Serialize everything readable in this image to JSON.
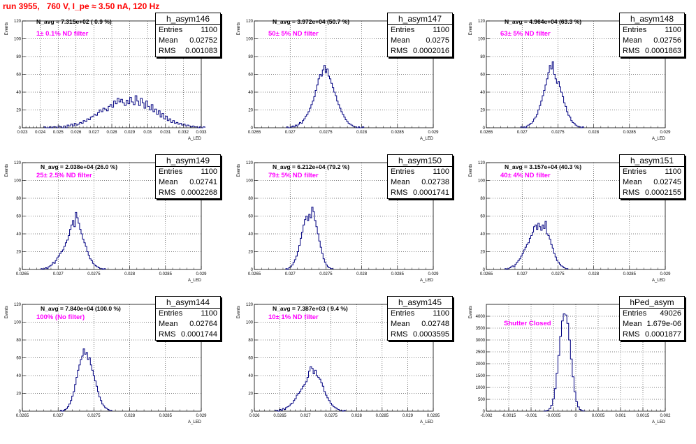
{
  "header": {
    "run_title": "run 3955,   760 V, I_pe ≈ 3.50 nA, 120 Hz"
  },
  "axis_labels": {
    "y": "Events",
    "x": "A_LED"
  },
  "stats_labels": {
    "entries": "Entries",
    "mean": "Mean",
    "rms": "RMS"
  },
  "colors": {
    "title": "#ff0000",
    "filter_text": "#ff00ff",
    "histogram": "#000080",
    "grid": "#000000"
  },
  "chart_data": [
    {
      "type": "bar",
      "name": "h_asym146",
      "n_avg": "N_avg = 7.315e+02 ( 0.9 %)",
      "filter": "1± 0.1% ND filter",
      "stats": {
        "entries": "1100",
        "mean": "0.02752",
        "rms": "0.001083"
      },
      "xlim": [
        0.023,
        0.033
      ],
      "ylim": [
        0,
        120
      ],
      "xticks": [
        "0.023",
        "0.024",
        "0.025",
        "0.026",
        "0.027",
        "0.028",
        "0.029",
        "0.03",
        "0.031",
        "0.032",
        "0.033"
      ],
      "yticks": [
        "0",
        "20",
        "40",
        "60",
        "80",
        "100",
        "120"
      ],
      "bin_start": 0.0242,
      "bin_width": 0.0001,
      "values": [
        1,
        0,
        0,
        1,
        0,
        1,
        1,
        0,
        2,
        1,
        0,
        2,
        0,
        3,
        2,
        4,
        2,
        5,
        3,
        4,
        6,
        5,
        8,
        7,
        10,
        9,
        12,
        13,
        15,
        14,
        17,
        20,
        18,
        22,
        21,
        19,
        24,
        26,
        23,
        30,
        27,
        33,
        29,
        32,
        28,
        25,
        31,
        27,
        34,
        29,
        26,
        36,
        30,
        25,
        33,
        28,
        22,
        30,
        24,
        20,
        26,
        18,
        21,
        15,
        19,
        12,
        16,
        10,
        13,
        8,
        10,
        6,
        8,
        5,
        6,
        4,
        5,
        3,
        4,
        2,
        3,
        2,
        1,
        2,
        1,
        1,
        0,
        1,
        0,
        1
      ]
    },
    {
      "type": "bar",
      "name": "h_asym147",
      "n_avg": "N_avg = 3.972e+04 (50.7 %)",
      "filter": "50± 5% ND filter",
      "stats": {
        "entries": "1100",
        "mean": "0.0275",
        "rms": "0.0002016"
      },
      "xlim": [
        0.0265,
        0.029
      ],
      "ylim": [
        0,
        120
      ],
      "xticks": [
        "0.0265",
        "0.027",
        "0.0275",
        "0.028",
        "0.0285",
        "0.029"
      ],
      "yticks": [
        "0",
        "20",
        "40",
        "60",
        "80",
        "100",
        "120"
      ],
      "bin_start": 0.02695,
      "bin_width": 2e-05,
      "values": [
        1,
        0,
        0,
        1,
        2,
        1,
        3,
        2,
        4,
        6,
        5,
        8,
        10,
        13,
        15,
        18,
        22,
        26,
        30,
        35,
        42,
        48,
        55,
        60,
        58,
        65,
        70,
        62,
        66,
        58,
        55,
        50,
        45,
        40,
        36,
        30,
        26,
        22,
        18,
        15,
        12,
        9,
        7,
        5,
        4,
        3,
        2,
        1,
        1,
        0,
        1,
        0,
        0,
        1
      ]
    },
    {
      "type": "bar",
      "name": "h_asym148",
      "n_avg": "N_avg = 4.964e+04 (63.3 %)",
      "filter": "63± 5% ND filter",
      "stats": {
        "entries": "1100",
        "mean": "0.02756",
        "rms": "0.0001863"
      },
      "xlim": [
        0.0265,
        0.029
      ],
      "ylim": [
        0,
        120
      ],
      "xticks": [
        "0.0265",
        "0.027",
        "0.0275",
        "0.028",
        "0.0285",
        "0.029"
      ],
      "yticks": [
        "0",
        "20",
        "40",
        "60",
        "80",
        "100",
        "120"
      ],
      "bin_start": 0.02698,
      "bin_width": 2e-05,
      "values": [
        1,
        0,
        1,
        0,
        2,
        3,
        4,
        5,
        7,
        10,
        12,
        15,
        20,
        25,
        30,
        36,
        42,
        48,
        55,
        62,
        70,
        66,
        74,
        60,
        55,
        50,
        52,
        46,
        40,
        35,
        28,
        24,
        18,
        14,
        12,
        8,
        6,
        5,
        3,
        2,
        1,
        1,
        0,
        1
      ]
    },
    {
      "type": "bar",
      "name": "h_asym149",
      "n_avg": "N_avg = 2.038e+04 (26.0 %)",
      "filter": "25± 2.5% ND filter",
      "stats": {
        "entries": "1100",
        "mean": "0.02741",
        "rms": "0.0002268"
      },
      "xlim": [
        0.0265,
        0.029
      ],
      "ylim": [
        0,
        120
      ],
      "xticks": [
        "0.0265",
        "0.027",
        "0.0275",
        "0.028",
        "0.0285",
        "0.029"
      ],
      "yticks": [
        "0",
        "20",
        "40",
        "60",
        "80",
        "100",
        "120"
      ],
      "bin_start": 0.02676,
      "bin_width": 2e-05,
      "values": [
        1,
        0,
        1,
        2,
        1,
        3,
        4,
        5,
        8,
        7,
        10,
        13,
        15,
        18,
        20,
        22,
        26,
        30,
        33,
        38,
        45,
        50,
        55,
        48,
        64,
        58,
        52,
        45,
        40,
        34,
        30,
        26,
        20,
        16,
        12,
        10,
        7,
        5,
        4,
        3,
        2,
        1,
        1,
        0,
        1
      ]
    },
    {
      "type": "bar",
      "name": "h_asym150",
      "n_avg": "N_avg = 6.212e+04 (79.2 %)",
      "filter": "79± 5% ND filter",
      "stats": {
        "entries": "1100",
        "mean": "0.02738",
        "rms": "0.0001741"
      },
      "xlim": [
        0.0265,
        0.029
      ],
      "ylim": [
        0,
        120
      ],
      "xticks": [
        "0.0265",
        "0.027",
        "0.0275",
        "0.028",
        "0.0285",
        "0.029"
      ],
      "yticks": [
        "0",
        "20",
        "40",
        "60",
        "80",
        "100",
        "120"
      ],
      "bin_start": 0.02694,
      "bin_width": 2e-05,
      "values": [
        1,
        0,
        2,
        3,
        5,
        8,
        11,
        15,
        20,
        27,
        35,
        42,
        50,
        56,
        60,
        55,
        62,
        58,
        70,
        65,
        55,
        48,
        40,
        32,
        25,
        18,
        12,
        8,
        5,
        3,
        2,
        1,
        1
      ]
    },
    {
      "type": "bar",
      "name": "h_asym151",
      "n_avg": "N_avg = 3.157e+04 (40.3 %)",
      "filter": "40± 4% ND filter",
      "stats": {
        "entries": "1100",
        "mean": "0.02745",
        "rms": "0.0002155"
      },
      "xlim": [
        0.0265,
        0.029
      ],
      "ylim": [
        0,
        120
      ],
      "xticks": [
        "0.0265",
        "0.027",
        "0.0275",
        "0.028",
        "0.0285",
        "0.029"
      ],
      "yticks": [
        "0",
        "20",
        "40",
        "60",
        "80",
        "100",
        "120"
      ],
      "bin_start": 0.02676,
      "bin_width": 2e-05,
      "values": [
        1,
        0,
        1,
        2,
        3,
        4,
        3,
        6,
        8,
        10,
        12,
        15,
        18,
        22,
        25,
        28,
        30,
        35,
        38,
        42,
        48,
        50,
        45,
        52,
        48,
        44,
        50,
        46,
        54,
        40,
        38,
        34,
        28,
        24,
        18,
        14,
        10,
        8,
        6,
        4,
        3,
        2,
        1,
        1
      ]
    },
    {
      "type": "bar",
      "name": "h_asym144",
      "n_avg": "N_avg = 7.840e+04 (100.0 %)",
      "filter": "100% (No filter)",
      "stats": {
        "entries": "1100",
        "mean": "0.02764",
        "rms": "0.0001744"
      },
      "xlim": [
        0.0265,
        0.029
      ],
      "ylim": [
        0,
        120
      ],
      "xticks": [
        "0.0265",
        "0.027",
        "0.0275",
        "0.028",
        "0.0285",
        "0.029"
      ],
      "yticks": [
        "0",
        "20",
        "40",
        "60",
        "80",
        "100",
        "120"
      ],
      "bin_start": 0.02703,
      "bin_width": 2e-05,
      "values": [
        1,
        0,
        1,
        2,
        3,
        5,
        8,
        12,
        17,
        22,
        30,
        38,
        46,
        52,
        58,
        62,
        70,
        64,
        66,
        58,
        60,
        52,
        46,
        40,
        34,
        28,
        22,
        16,
        12,
        8,
        6,
        4,
        3,
        2,
        1,
        1
      ]
    },
    {
      "type": "bar",
      "name": "h_asym145",
      "n_avg": "N_avg = 7.387e+03 ( 9.4 %)",
      "filter": "10± 1% ND filter",
      "stats": {
        "entries": "1100",
        "mean": "0.02748",
        "rms": "0.0003595"
      },
      "xlim": [
        0.026,
        0.0295
      ],
      "ylim": [
        0,
        120
      ],
      "xticks": [
        "0.026",
        "0.0265",
        "0.027",
        "0.0275",
        "0.028",
        "0.0285",
        "0.029",
        "0.0295"
      ],
      "yticks": [
        "0",
        "20",
        "40",
        "60",
        "80",
        "100",
        "120"
      ],
      "bin_start": 0.0264,
      "bin_width": 3e-05,
      "values": [
        1,
        1,
        0,
        2,
        1,
        3,
        2,
        4,
        5,
        6,
        8,
        9,
        12,
        14,
        18,
        20,
        22,
        25,
        28,
        30,
        33,
        38,
        45,
        50,
        48,
        42,
        46,
        40,
        38,
        36,
        32,
        28,
        22,
        18,
        15,
        12,
        9,
        7,
        5,
        4,
        3,
        2,
        1,
        1,
        0,
        1
      ]
    },
    {
      "type": "bar",
      "name": "hPed_asym",
      "n_avg": "",
      "filter": "Shutter Closed",
      "stats": {
        "entries": "49026",
        "mean": "1.679e-06",
        "rms": "0.0001877"
      },
      "xlim": [
        -0.002,
        0.002
      ],
      "ylim": [
        0,
        4500
      ],
      "xticks": [
        "-0.002",
        "-0.0015",
        "-0.001",
        "-0.0005",
        "0",
        "0.0005",
        "0.001",
        "0.0015",
        "0.002"
      ],
      "yticks": [
        "0",
        "500",
        "1000",
        "1500",
        "2000",
        "2500",
        "3000",
        "3500",
        "4000"
      ],
      "bin_start": -0.00072,
      "bin_width": 4e-05,
      "values": [
        5,
        15,
        40,
        110,
        250,
        520,
        950,
        1600,
        2350,
        3150,
        3800,
        4100,
        4050,
        3700,
        3000,
        2200,
        1450,
        820,
        400,
        180,
        70,
        25,
        8
      ]
    }
  ]
}
